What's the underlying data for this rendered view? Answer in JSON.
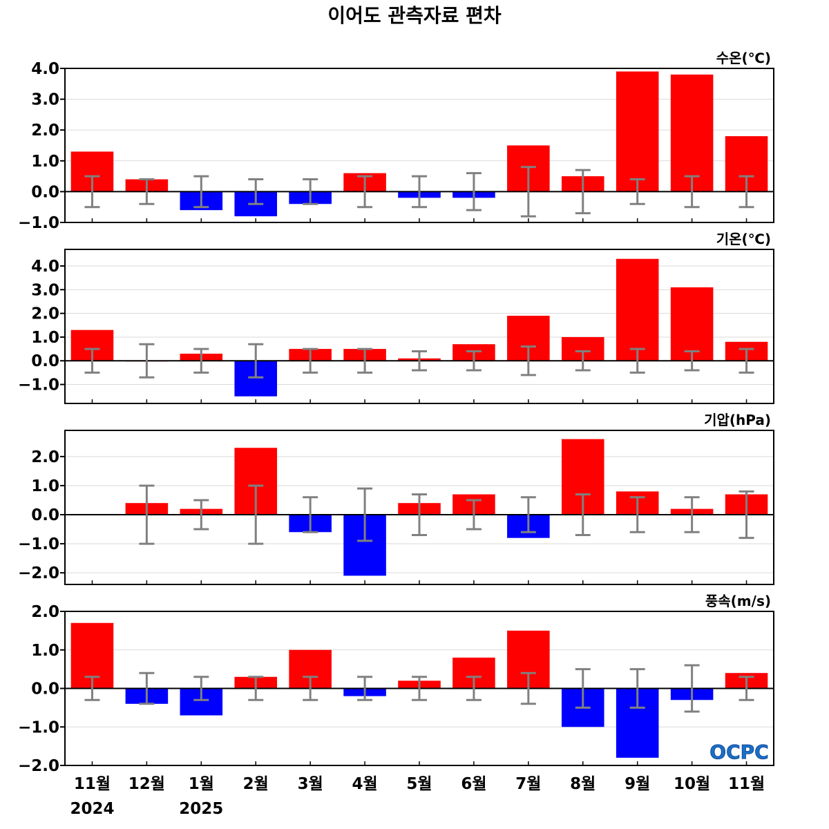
{
  "title": "이어도 관측자료 편차",
  "logo": "OCPC",
  "colors": {
    "positive": "#ff0000",
    "negative": "#0000ff",
    "error": "#808080",
    "grid": "#d9d9d9"
  },
  "months": [
    "11월",
    "12월",
    "1월",
    "2월",
    "3월",
    "4월",
    "5월",
    "6월",
    "7월",
    "8월",
    "9월",
    "10월",
    "11월"
  ],
  "years": [
    {
      "label": "2024",
      "index": 0
    },
    {
      "label": "2025",
      "index": 2
    }
  ],
  "chart_data": [
    {
      "type": "bar",
      "name": "수온(℃)",
      "unit_label": "수온(℃)",
      "ylim": [
        -1.0,
        4.0
      ],
      "yticks": [
        -1.0,
        0.0,
        1.0,
        2.0,
        3.0,
        4.0
      ],
      "ytick_labels": [
        "−1.0",
        "0.0",
        "1.0",
        "2.0",
        "3.0",
        "4.0"
      ],
      "grid": true,
      "values": [
        1.3,
        0.4,
        -0.6,
        -0.8,
        -0.4,
        0.6,
        -0.2,
        -0.2,
        1.5,
        0.5,
        3.9,
        3.8,
        1.8
      ],
      "err_low": [
        -0.5,
        -0.4,
        -0.5,
        -0.4,
        -0.4,
        -0.5,
        -0.5,
        -0.6,
        -0.8,
        -0.7,
        -0.4,
        -0.5,
        -0.5
      ],
      "err_high": [
        0.5,
        0.4,
        0.5,
        0.4,
        0.4,
        0.5,
        0.5,
        0.6,
        0.8,
        0.7,
        0.4,
        0.5,
        0.5
      ]
    },
    {
      "type": "bar",
      "name": "기온(℃)",
      "unit_label": "기온(℃)",
      "ylim": [
        -1.8,
        4.7
      ],
      "yticks": [
        -1.0,
        0.0,
        1.0,
        2.0,
        3.0,
        4.0
      ],
      "ytick_labels": [
        "−1.0",
        "0.0",
        "1.0",
        "2.0",
        "3.0",
        "4.0"
      ],
      "grid": true,
      "values": [
        1.3,
        0.0,
        0.3,
        -1.5,
        0.5,
        0.5,
        0.1,
        0.7,
        1.9,
        1.0,
        4.3,
        3.1,
        0.8
      ],
      "err_low": [
        -0.5,
        -0.7,
        -0.5,
        -0.7,
        -0.5,
        -0.5,
        -0.4,
        -0.4,
        -0.6,
        -0.4,
        -0.5,
        -0.4,
        -0.5
      ],
      "err_high": [
        0.5,
        0.7,
        0.5,
        0.7,
        0.5,
        0.5,
        0.4,
        0.4,
        0.6,
        0.4,
        0.5,
        0.4,
        0.5
      ]
    },
    {
      "type": "bar",
      "name": "기압(hPa)",
      "unit_label": "기압(hPa)",
      "ylim": [
        -2.4,
        2.9
      ],
      "yticks": [
        -2.0,
        -1.0,
        0.0,
        1.0,
        2.0
      ],
      "ytick_labels": [
        "−2.0",
        "−1.0",
        "0.0",
        "1.0",
        "2.0"
      ],
      "grid": true,
      "values": [
        0.0,
        0.4,
        0.2,
        2.3,
        -0.6,
        -2.1,
        0.4,
        0.7,
        -0.8,
        2.6,
        0.8,
        0.2,
        0.7
      ],
      "err_low": [
        0.0,
        -1.0,
        -0.5,
        -1.0,
        -0.6,
        -0.9,
        -0.7,
        -0.5,
        -0.6,
        -0.7,
        -0.6,
        -0.6,
        -0.8
      ],
      "err_high": [
        0.0,
        1.0,
        0.5,
        1.0,
        0.6,
        0.9,
        0.7,
        0.5,
        0.6,
        0.7,
        0.6,
        0.6,
        0.8
      ]
    },
    {
      "type": "bar",
      "name": "풍속(m/s)",
      "unit_label": "풍속(m/s)",
      "ylim": [
        -2.0,
        2.0
      ],
      "yticks": [
        -2.0,
        -1.0,
        0.0,
        1.0,
        2.0
      ],
      "ytick_labels": [
        "−2.0",
        "−1.0",
        "0.0",
        "1.0",
        "2.0"
      ],
      "grid": true,
      "values": [
        1.7,
        -0.4,
        -0.7,
        0.3,
        1.0,
        -0.2,
        0.2,
        0.8,
        1.5,
        -1.0,
        -1.8,
        -0.3,
        0.4
      ],
      "err_low": [
        -0.3,
        -0.4,
        -0.3,
        -0.3,
        -0.3,
        -0.3,
        -0.3,
        -0.3,
        -0.4,
        -0.5,
        -0.5,
        -0.6,
        -0.3
      ],
      "err_high": [
        0.3,
        0.4,
        0.3,
        0.3,
        0.3,
        0.3,
        0.3,
        0.3,
        0.4,
        0.5,
        0.5,
        0.6,
        0.3
      ]
    }
  ]
}
